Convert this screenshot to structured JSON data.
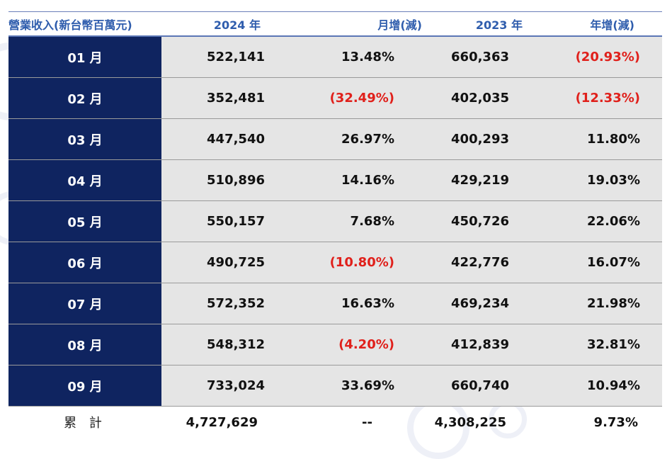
{
  "header": {
    "col_label": "營業收入(新台幣百萬元)",
    "col_2024": "2024 年",
    "col_mom": "月增(減)",
    "col_2023": "2023 年",
    "col_yoy": "年增(減)"
  },
  "rows": [
    {
      "month": "01 月",
      "rev2024": "522,141",
      "mom": "13.48%",
      "rev2023": "660,363",
      "yoy": "(20.93%)"
    },
    {
      "month": "02 月",
      "rev2024": "352,481",
      "mom": "(32.49%)",
      "rev2023": "402,035",
      "yoy": "(12.33%)"
    },
    {
      "month": "03 月",
      "rev2024": "447,540",
      "mom": "26.97%",
      "rev2023": "400,293",
      "yoy": "11.80%"
    },
    {
      "month": "04 月",
      "rev2024": "510,896",
      "mom": "14.16%",
      "rev2023": "429,219",
      "yoy": "19.03%"
    },
    {
      "month": "05 月",
      "rev2024": "550,157",
      "mom": "7.68%",
      "rev2023": "450,726",
      "yoy": "22.06%"
    },
    {
      "month": "06 月",
      "rev2024": "490,725",
      "mom": "(10.80%)",
      "rev2023": "422,776",
      "yoy": "16.07%"
    },
    {
      "month": "07 月",
      "rev2024": "572,352",
      "mom": "16.63%",
      "rev2023": "469,234",
      "yoy": "21.98%"
    },
    {
      "month": "08 月",
      "rev2024": "548,312",
      "mom": "(4.20%)",
      "rev2023": "412,839",
      "yoy": "32.81%"
    },
    {
      "month": "09 月",
      "rev2024": "733,024",
      "mom": "33.69%",
      "rev2023": "660,740",
      "yoy": "10.94%"
    }
  ],
  "total": {
    "label": "累 計",
    "rev2024": "4,727,629",
    "mom": "--",
    "rev2023": "4,308,225",
    "yoy": "9.73%"
  },
  "colors": {
    "month_cell": "#0f2460",
    "header_text": "#2f5dad",
    "negative": "#e0201b",
    "cell_bg": "#e5e5e5"
  }
}
